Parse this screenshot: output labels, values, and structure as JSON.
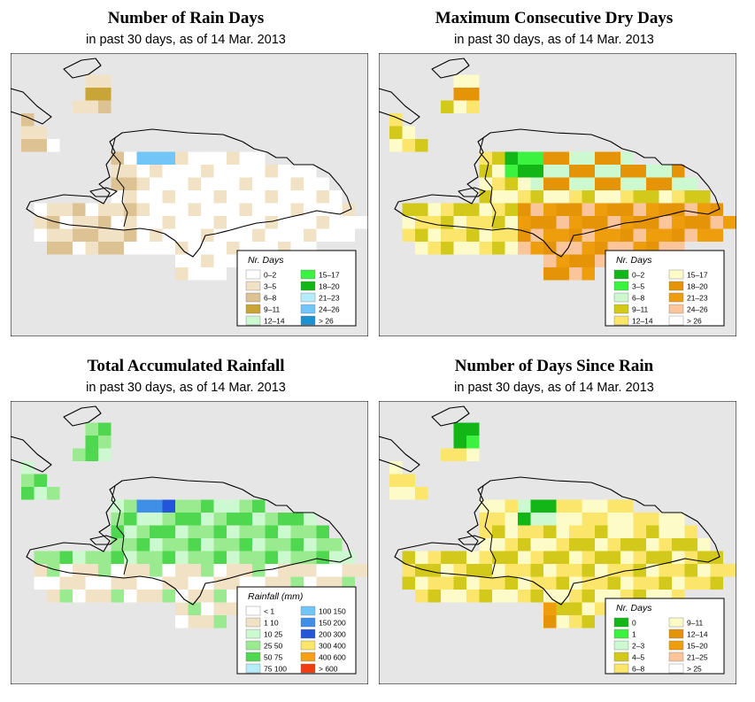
{
  "colors": {
    "ocean": "#e6e6e6",
    "coast": "#000000"
  },
  "panels": [
    {
      "title": "Number of Rain Days",
      "subtitle": "in past 30 days, as of  14 Mar. 2013",
      "legend": {
        "title": "Nr. Days",
        "items": [
          {
            "label": "0–2",
            "color": "#ffffff"
          },
          {
            "label": "3–5",
            "color": "#f2e2c5"
          },
          {
            "label": "6–8",
            "color": "#ddc394"
          },
          {
            "label": "9–11",
            "color": "#c9a437"
          },
          {
            "label": "12–14",
            "color": "#ccf9cf"
          },
          {
            "label": "15–17",
            "color": "#3af23f"
          },
          {
            "label": "18–20",
            "color": "#12b616"
          },
          {
            "label": "21–23",
            "color": "#b6ecfa"
          },
          {
            "label": "24–26",
            "color": "#72c6f7"
          },
          {
            "label": "> 26",
            "color": "#1c91d1"
          }
        ]
      }
    },
    {
      "title": "Maximum Consecutive Dry Days",
      "subtitle": "in past 30 days, as of  14 Mar. 2013",
      "legend": {
        "title": "Nr. Days",
        "items": [
          {
            "label": "0–2",
            "color": "#12b616"
          },
          {
            "label": "3–5",
            "color": "#3af23f"
          },
          {
            "label": "6–8",
            "color": "#ccf9cf"
          },
          {
            "label": "9–11",
            "color": "#d2c91b"
          },
          {
            "label": "12–14",
            "color": "#fbe56a"
          },
          {
            "label": "15–17",
            "color": "#fdfbc8"
          },
          {
            "label": "18–20",
            "color": "#e59407"
          },
          {
            "label": "21–23",
            "color": "#ee9d0c"
          },
          {
            "label": "24–26",
            "color": "#fbc59c"
          },
          {
            "label": "> 26",
            "color": "#ffffff"
          }
        ]
      }
    },
    {
      "title": "Total Accumulated Rainfall",
      "subtitle": "in past 30 days, as of  14 Mar. 2013",
      "legend": {
        "title": "Rainfall (mm)",
        "items": [
          {
            "label": "< 1",
            "color": "#ffffff"
          },
          {
            "label": "1   10",
            "color": "#f2e2c5"
          },
          {
            "label": "10   25",
            "color": "#ccf9cf"
          },
          {
            "label": "25   50",
            "color": "#9aeb8f"
          },
          {
            "label": "50   75",
            "color": "#4fd84f"
          },
          {
            "label": "75   100",
            "color": "#b6ecfa"
          },
          {
            "label": "100   150",
            "color": "#72c6f7"
          },
          {
            "label": "150   200",
            "color": "#3f8fe6"
          },
          {
            "label": "200   300",
            "color": "#2255d8"
          },
          {
            "label": "300   400",
            "color": "#fbe56a"
          },
          {
            "label": "400   600",
            "color": "#f5a017"
          },
          {
            "label": "> 600",
            "color": "#f03c12"
          }
        ]
      }
    },
    {
      "title": "Number of Days Since Rain",
      "subtitle": "in past 30 days, as of  14 Mar. 2013",
      "legend": {
        "title": "Nr. Days",
        "items": [
          {
            "label": "0",
            "color": "#12b616"
          },
          {
            "label": "1",
            "color": "#3af23f"
          },
          {
            "label": "2–3",
            "color": "#ccf9cf"
          },
          {
            "label": "4–5",
            "color": "#d2c91b"
          },
          {
            "label": "6–8",
            "color": "#fbe56a"
          },
          {
            "label": "9–11",
            "color": "#fdfbc8"
          },
          {
            "label": "12–14",
            "color": "#e59407"
          },
          {
            "label": "15–20",
            "color": "#ee9d0c"
          },
          {
            "label": "21–25",
            "color": "#fbc59c"
          },
          {
            "label": "> 25",
            "color": "#ffffff"
          }
        ]
      }
    }
  ]
}
